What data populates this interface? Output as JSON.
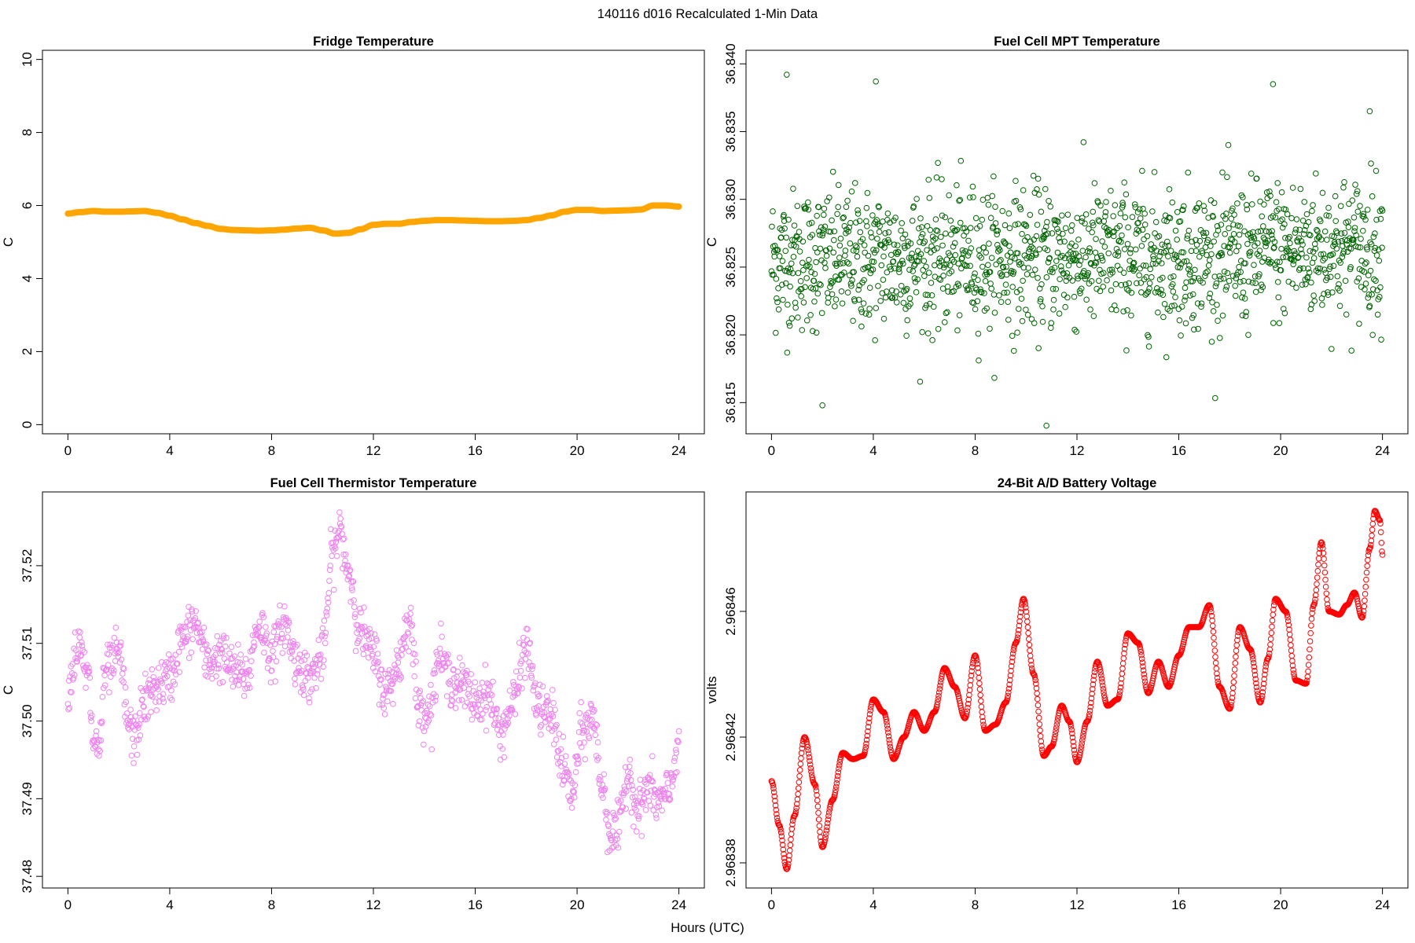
{
  "figure": {
    "title": "140116   d016   Recalculated 1-Min Data",
    "xlabel": "Hours (UTC)"
  },
  "chart_data": [
    {
      "id": "fridge",
      "type": "line",
      "title": "Fridge Temperature",
      "ylabel": "C",
      "xlabel": "",
      "xlim": [
        -1,
        25
      ],
      "ylim": [
        -0.25,
        10.25
      ],
      "xticks": [
        0,
        4,
        8,
        12,
        16,
        20,
        24
      ],
      "xtick_labels": [
        "0",
        "4",
        "8",
        "12",
        "16",
        "20",
        "24"
      ],
      "yticks": [
        0,
        2,
        4,
        6,
        8,
        10
      ],
      "ytick_labels": [
        "0",
        "2",
        "4",
        "6",
        "8",
        "10"
      ],
      "color": "#FFA500",
      "series": [
        {
          "x": [
            0,
            0.5,
            1,
            1.5,
            2,
            2.5,
            3,
            3.5,
            4,
            4.5,
            5,
            5.5,
            6,
            6.5,
            7,
            7.5,
            8,
            8.5,
            9,
            9.5,
            10,
            10.5,
            11,
            11.5,
            12,
            12.5,
            13,
            13.5,
            14,
            14.5,
            15,
            15.5,
            16,
            16.5,
            17,
            17.5,
            18,
            18.5,
            19,
            19.5,
            20,
            20.5,
            21,
            21.5,
            22,
            22.5,
            23,
            23.5,
            24
          ],
          "y": [
            5.78,
            5.82,
            5.85,
            5.83,
            5.83,
            5.84,
            5.85,
            5.8,
            5.72,
            5.62,
            5.52,
            5.44,
            5.36,
            5.33,
            5.32,
            5.31,
            5.32,
            5.34,
            5.37,
            5.39,
            5.32,
            5.23,
            5.25,
            5.35,
            5.47,
            5.5,
            5.5,
            5.55,
            5.58,
            5.6,
            5.6,
            5.59,
            5.58,
            5.57,
            5.57,
            5.58,
            5.6,
            5.66,
            5.73,
            5.83,
            5.88,
            5.88,
            5.85,
            5.86,
            5.87,
            5.89,
            6.0,
            6.0,
            5.97
          ]
        }
      ]
    },
    {
      "id": "mpt",
      "type": "scatter",
      "title": "Fuel Cell MPT Temperature",
      "ylabel": "C",
      "xlabel": "",
      "xlim": [
        -1,
        25
      ],
      "ylim": [
        36.8127,
        36.841
      ],
      "xticks": [
        0,
        4,
        8,
        12,
        16,
        20,
        24
      ],
      "xtick_labels": [
        "0",
        "4",
        "8",
        "12",
        "16",
        "20",
        "24"
      ],
      "yticks": [
        36.815,
        36.82,
        36.825,
        36.83,
        36.835,
        36.84
      ],
      "ytick_labels": [
        "36.815",
        "36.820",
        "36.825",
        "36.830",
        "36.835",
        "36.840"
      ],
      "color": "#006400",
      "series": [
        {
          "x_start": 0,
          "x_end": 24,
          "center": 36.8255,
          "spread": 0.0026,
          "trend_end": 0.0008,
          "extremes": [
            [
              0.6,
              36.8392
            ],
            [
              4.1,
              36.8387
            ],
            [
              10.8,
              36.8133
            ],
            [
              19.7,
              36.8385
            ],
            [
              23.5,
              36.8365
            ],
            [
              2.0,
              36.8148
            ]
          ]
        }
      ]
    },
    {
      "id": "thermistor",
      "type": "scatter",
      "title": "Fuel Cell Thermistor Temperature",
      "ylabel": "C",
      "xlabel": "",
      "xlim": [
        -1,
        25
      ],
      "ylim": [
        37.4785,
        37.5295
      ],
      "xticks": [
        0,
        4,
        8,
        12,
        16,
        20,
        24
      ],
      "xtick_labels": [
        "0",
        "4",
        "8",
        "12",
        "16",
        "20",
        "24"
      ],
      "yticks": [
        37.48,
        37.49,
        37.5,
        37.51,
        37.52
      ],
      "ytick_labels": [
        "37.48",
        "37.49",
        "37.50",
        "37.51",
        "37.52"
      ],
      "color": "#EE82EE",
      "series": [
        {
          "x": [
            0,
            0.4,
            0.8,
            1.0,
            1.2,
            1.5,
            2.0,
            2.4,
            2.6,
            3.0,
            3.5,
            4.0,
            4.5,
            5.0,
            5.5,
            6.0,
            6.5,
            7.0,
            7.5,
            8.0,
            8.5,
            9.0,
            9.5,
            10.0,
            10.4,
            10.7,
            11.0,
            11.5,
            12.0,
            12.5,
            13.0,
            13.4,
            13.8,
            14.2,
            14.6,
            15.0,
            15.5,
            16.0,
            16.5,
            17.0,
            17.5,
            18.0,
            18.5,
            19.0,
            19.5,
            19.8,
            20.2,
            20.6,
            21.0,
            21.3,
            21.6,
            22.0,
            22.4,
            22.8,
            23.2,
            23.6,
            24.0
          ],
          "y": [
            37.5045,
            37.5095,
            37.5055,
            37.4975,
            37.4965,
            37.5065,
            37.5085,
            37.4995,
            37.4975,
            37.5025,
            37.5045,
            37.5055,
            37.5105,
            37.5125,
            37.5075,
            37.5085,
            37.5065,
            37.5055,
            37.5125,
            37.5085,
            37.5125,
            37.5075,
            37.5055,
            37.5085,
            37.5215,
            37.5245,
            37.5195,
            37.5115,
            37.5085,
            37.5035,
            37.5075,
            37.5135,
            37.5015,
            37.5015,
            37.5085,
            37.5055,
            37.5045,
            37.5025,
            37.5035,
            37.4985,
            37.5025,
            37.5095,
            37.5015,
            37.5005,
            37.4935,
            37.4905,
            37.4985,
            37.5005,
            37.4915,
            37.4855,
            37.4855,
            37.4935,
            37.4885,
            37.4915,
            37.4895,
            37.4905,
            37.4975
          ]
        }
      ]
    },
    {
      "id": "battery",
      "type": "scatter",
      "title": "24-Bit A/D Battery Voltage",
      "ylabel": "volts",
      "xlabel": "",
      "xlim": [
        -1,
        25
      ],
      "ylim": [
        2.968372,
        2.968498
      ],
      "xticks": [
        0,
        4,
        8,
        12,
        16,
        20,
        24
      ],
      "xtick_labels": [
        "0",
        "4",
        "8",
        "12",
        "16",
        "20",
        "24"
      ],
      "yticks": [
        2.96838,
        2.96842,
        2.96846
      ],
      "ytick_labels": [
        "2.96838",
        "2.96842",
        "2.96846"
      ],
      "color": "#FF0000",
      "series": [
        {
          "x": [
            0,
            0.3,
            0.6,
            0.9,
            1.3,
            1.7,
            2.0,
            2.4,
            2.8,
            3.2,
            3.6,
            4.0,
            4.4,
            4.8,
            5.2,
            5.6,
            6.0,
            6.4,
            6.8,
            7.2,
            7.6,
            8.0,
            8.4,
            8.8,
            9.2,
            9.6,
            9.9,
            10.3,
            10.7,
            11.0,
            11.4,
            11.7,
            12.0,
            12.4,
            12.8,
            13.2,
            13.6,
            14.0,
            14.4,
            14.8,
            15.2,
            15.6,
            16.0,
            16.4,
            16.8,
            17.2,
            17.6,
            18.0,
            18.4,
            18.8,
            19.2,
            19.5,
            19.8,
            20.2,
            20.6,
            21.0,
            21.3,
            21.6,
            21.9,
            22.3,
            22.6,
            22.9,
            23.2,
            23.5,
            23.7,
            23.9,
            24.0
          ],
          "y": [
            2.968406,
            2.968392,
            2.968378,
            2.968395,
            2.96842,
            2.968405,
            2.968385,
            2.9684,
            2.968415,
            2.968413,
            2.968414,
            2.968432,
            2.968428,
            2.968413,
            2.96842,
            2.968428,
            2.968422,
            2.968428,
            2.968442,
            2.968436,
            2.968426,
            2.968446,
            2.968422,
            2.968424,
            2.968431,
            2.96845,
            2.968464,
            2.96844,
            2.968414,
            2.968417,
            2.96843,
            2.968425,
            2.968412,
            2.968425,
            2.968444,
            2.96843,
            2.968432,
            2.968453,
            2.96845,
            2.968434,
            2.968444,
            2.968436,
            2.968446,
            2.968455,
            2.968455,
            2.968462,
            2.968436,
            2.968429,
            2.968455,
            2.968448,
            2.968431,
            2.968445,
            2.968464,
            2.96846,
            2.968438,
            2.968437,
            2.968462,
            2.968482,
            2.96846,
            2.968459,
            2.968462,
            2.968466,
            2.968458,
            2.96848,
            2.968492,
            2.968489,
            2.968478
          ]
        }
      ]
    }
  ]
}
